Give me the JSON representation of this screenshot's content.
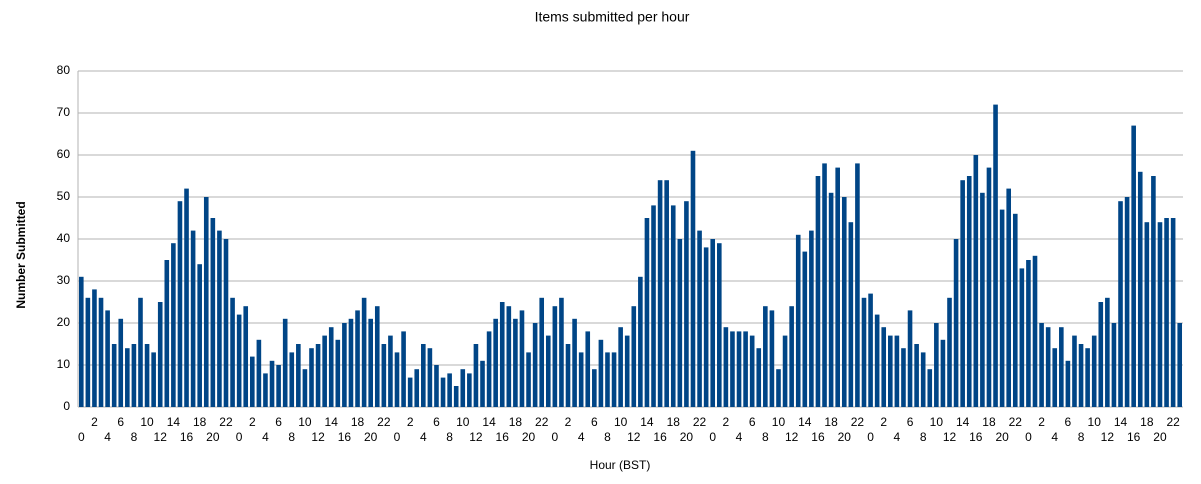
{
  "chart_data": {
    "type": "bar",
    "title": "Items submitted per hour",
    "x_label": "Hour (BST)",
    "y_label": "Number Submitted",
    "categories": [
      "0",
      null,
      "2",
      null,
      "4",
      null,
      "6",
      null,
      "8",
      null,
      "10",
      null,
      "12",
      null,
      "14",
      null,
      "16",
      null,
      "18",
      null,
      "20",
      null,
      "22",
      null,
      "0",
      null,
      "2",
      null,
      "4",
      null,
      "6",
      null,
      "8",
      null,
      "10",
      null,
      "12",
      null,
      "14",
      null,
      "16",
      null,
      "18",
      null,
      "20",
      null,
      "22",
      null,
      "0",
      null,
      "2",
      null,
      "4",
      null,
      "6",
      null,
      "8",
      null,
      "10",
      null,
      "12",
      null,
      "14",
      null,
      "16",
      null,
      "18",
      null,
      "20",
      null,
      "22",
      null,
      "0",
      null,
      "2",
      null,
      "4",
      null,
      "6",
      null,
      "8",
      null,
      "10",
      null,
      "12",
      null,
      "14",
      null,
      "16",
      null,
      "18",
      null,
      "20",
      null,
      "22",
      null,
      "0",
      null,
      "2",
      null,
      "4",
      null,
      "6",
      null,
      "8",
      null,
      "10",
      null,
      "12",
      null,
      "14",
      null,
      "16",
      null,
      "18",
      null,
      "20",
      null,
      "22",
      null,
      "0",
      null,
      "2",
      null,
      "4",
      null,
      "6",
      null,
      "8",
      null,
      "10",
      null,
      "12",
      null,
      "14",
      null,
      "16",
      null,
      "18",
      null,
      "20",
      null,
      "22",
      null,
      "0",
      null,
      "2",
      null,
      "4",
      null,
      "6",
      null,
      "8",
      null,
      "10",
      null,
      "12",
      null,
      "14",
      null,
      "16",
      null,
      "18",
      null,
      "20",
      null,
      "22",
      null
    ],
    "values": [
      31,
      26,
      28,
      26,
      23,
      15,
      21,
      14,
      15,
      26,
      15,
      13,
      25,
      35,
      39,
      49,
      52,
      42,
      34,
      50,
      45,
      42,
      40,
      26,
      22,
      24,
      12,
      16,
      8,
      11,
      10,
      21,
      13,
      15,
      9,
      14,
      15,
      17,
      19,
      16,
      20,
      21,
      23,
      26,
      21,
      24,
      15,
      17,
      13,
      18,
      7,
      9,
      15,
      14,
      10,
      7,
      8,
      5,
      9,
      8,
      15,
      11,
      18,
      21,
      25,
      24,
      21,
      23,
      13,
      20,
      26,
      17,
      24,
      26,
      15,
      21,
      13,
      18,
      9,
      16,
      13,
      13,
      19,
      17,
      24,
      31,
      45,
      48,
      54,
      54,
      48,
      40,
      49,
      61,
      42,
      38,
      40,
      39,
      19,
      18,
      18,
      18,
      17,
      14,
      24,
      23,
      9,
      17,
      24,
      41,
      37,
      42,
      55,
      58,
      51,
      57,
      50,
      44,
      58,
      26,
      27,
      22,
      19,
      17,
      17,
      14,
      23,
      15,
      13,
      9,
      20,
      16,
      26,
      40,
      54,
      55,
      60,
      51,
      57,
      72,
      47,
      52,
      46,
      33,
      35,
      36,
      20,
      19,
      14,
      19,
      11,
      17,
      15,
      14,
      17,
      25,
      26,
      20,
      49,
      50,
      67,
      56,
      44,
      55,
      44,
      45,
      45,
      20
    ],
    "color": "#004586",
    "ylim": [
      0,
      80
    ],
    "yticks": [
      0,
      10,
      20,
      30,
      40,
      50,
      60,
      70,
      80
    ],
    "grid": true
  }
}
